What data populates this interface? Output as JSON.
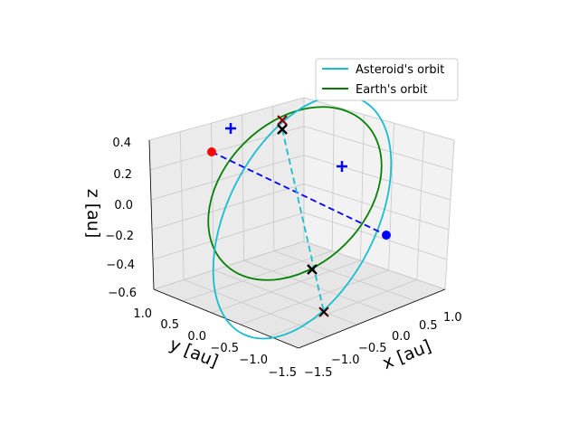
{
  "chart_data": {
    "type": "line",
    "projection": "3d",
    "title": "",
    "xlabel": "x [au]",
    "ylabel": "y [au]",
    "zlabel": "z [au]",
    "xlim": [
      -1.5,
      1.0
    ],
    "ylim": [
      -1.5,
      1.0
    ],
    "zlim": [
      -0.6,
      0.4
    ],
    "x_ticks": [
      "−1.5",
      "−1.0",
      "−0.5",
      "0.0",
      "0.5",
      "1.0"
    ],
    "y_ticks": [
      "−1.5",
      "−1.0",
      "−0.5",
      "0.0",
      "0.5",
      "1.0"
    ],
    "z_ticks": [
      "−0.6",
      "−0.4",
      "−0.2",
      "0.0",
      "0.2",
      "0.4"
    ],
    "grid": true,
    "legend_position": "top-right",
    "series": [
      {
        "name": "Asteroid's orbit",
        "color": "#17becf",
        "style": "solid",
        "x": [
          1.1,
          -0.55,
          -1.3,
          0.2
        ],
        "y": [
          -0.2,
          -1.2,
          0.2,
          1.15
        ],
        "z": [
          -0.2,
          -0.58,
          0.15,
          0.4
        ]
      },
      {
        "name": "Earth's orbit",
        "color": "#008000",
        "style": "solid",
        "x": [
          1.0,
          0.0,
          -1.0,
          0.0
        ],
        "y": [
          0.0,
          -1.0,
          0.0,
          1.0
        ],
        "z": [
          0.2,
          -0.2,
          -0.2,
          0.2
        ]
      }
    ],
    "annotations": [
      {
        "type": "point",
        "color": "#ff0000",
        "marker": "circle",
        "x": -1.3,
        "y": 0.2,
        "z": 0.15
      },
      {
        "type": "point",
        "color": "#0000ff",
        "marker": "circle",
        "x": 1.1,
        "y": -0.2,
        "z": -0.2
      },
      {
        "type": "point",
        "color": "#0000ff",
        "marker": "plus",
        "x": -0.55,
        "y": 1.05,
        "z": 0.38
      },
      {
        "type": "point",
        "color": "#0000ff",
        "marker": "plus",
        "x": 0.85,
        "y": 0.6,
        "z": 0.25
      },
      {
        "type": "point",
        "color": "#000000",
        "marker": "x",
        "x": -0.1,
        "y": 1.15,
        "z": 0.4
      },
      {
        "type": "point",
        "color": "#000000",
        "marker": "x",
        "x": 0.0,
        "y": -1.0,
        "z": -0.2
      },
      {
        "type": "point",
        "color": "#8b0000",
        "marker": "x",
        "x": -0.1,
        "y": 1.15,
        "z": 0.45
      },
      {
        "type": "point",
        "color": "#8b0000",
        "marker": "x",
        "x": -0.55,
        "y": -1.2,
        "z": -0.58
      },
      {
        "type": "line",
        "color": "#0000ff",
        "style": "dashed",
        "from": "red point",
        "to": "blue point"
      },
      {
        "type": "line",
        "color": "#17becf",
        "style": "dashed",
        "from": "black x top",
        "to": "dark red x bottom"
      }
    ]
  }
}
